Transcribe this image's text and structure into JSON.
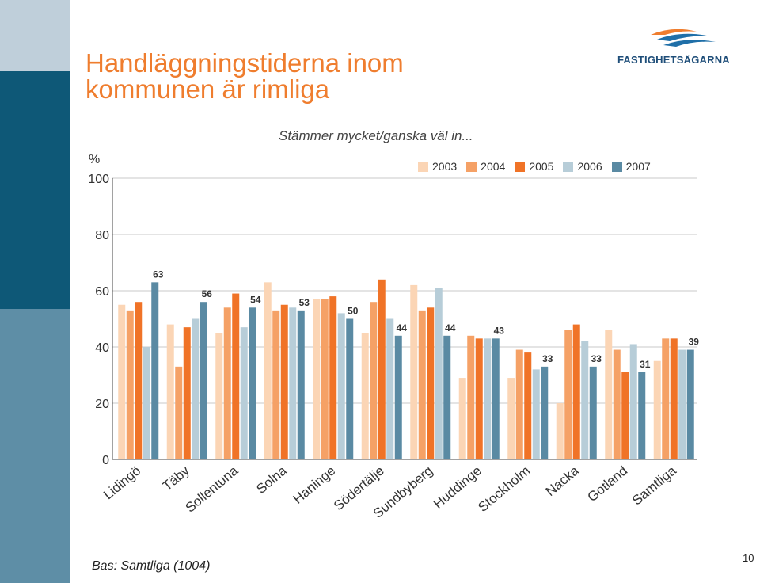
{
  "title_line1": "Handläggningstiderna inom",
  "title_line2": "kommunen är rimliga",
  "logo_text": "FASTIGHETSÄGARNA",
  "footer": "Bas: Samtliga (1004)",
  "page_number": "10",
  "colors": {
    "series": [
      "#fbd5b5",
      "#f5a166",
      "#f07327",
      "#b7cdd8",
      "#5a8aa3"
    ],
    "title": "#ef7d2e",
    "sidebar_top": "#bfcfda",
    "sidebar_mid": "#0e5877",
    "sidebar_bottom": "#5e8ea6"
  },
  "chart_data": {
    "type": "bar",
    "title": "Stämmer mycket/ganska väl in...",
    "ylabel": "%",
    "ylim": [
      0,
      100
    ],
    "yticks": [
      0,
      20,
      40,
      60,
      80,
      100
    ],
    "categories": [
      "Lidingö",
      "Täby",
      "Sollentuna",
      "Solna",
      "Haninge",
      "Södertälje",
      "Sundbyberg",
      "Huddinge",
      "Stockholm",
      "Nacka",
      "Gotland",
      "Samtliga"
    ],
    "series": [
      {
        "name": "2003",
        "values": [
          55,
          48,
          45,
          63,
          57,
          45,
          62,
          29,
          29,
          20,
          46,
          35
        ]
      },
      {
        "name": "2004",
        "values": [
          53,
          33,
          54,
          53,
          57,
          56,
          53,
          44,
          39,
          46,
          39,
          43
        ]
      },
      {
        "name": "2005",
        "values": [
          56,
          47,
          59,
          55,
          58,
          64,
          54,
          43,
          38,
          48,
          31,
          43
        ]
      },
      {
        "name": "2006",
        "values": [
          40,
          50,
          47,
          54,
          52,
          50,
          61,
          43,
          32,
          42,
          41,
          39
        ]
      },
      {
        "name": "2007",
        "values": [
          63,
          56,
          54,
          53,
          50,
          44,
          44,
          43,
          33,
          33,
          31,
          39
        ]
      }
    ],
    "value_labels": [
      "63",
      "56",
      "54",
      "53",
      "50",
      "44",
      "44",
      "43",
      "33",
      "33",
      "31",
      "39"
    ]
  }
}
